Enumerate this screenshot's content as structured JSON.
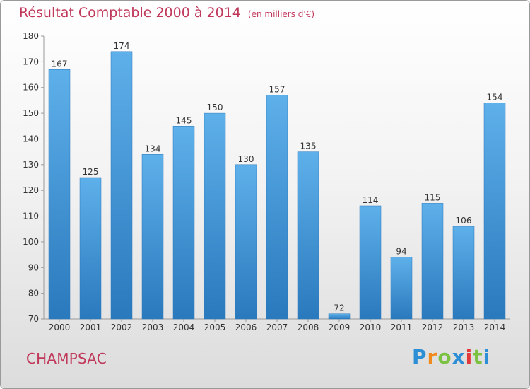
{
  "header": {
    "title": "Résultat Comptable 2000 à 2014",
    "subtitle": "(en milliers d'€)"
  },
  "footer": {
    "commune": "CHAMPSAC",
    "logo": "Proxiti"
  },
  "colors": {
    "bar": "#3a92d6",
    "bar_light": "#5eb0ea",
    "bar_dark": "#2a79bd",
    "title": "#c0385a"
  },
  "chart_data": {
    "type": "bar",
    "title": "Résultat Comptable 2000 à 2014",
    "subtitle": "(en milliers d'€)",
    "categories": [
      "2000",
      "2001",
      "2002",
      "2003",
      "2004",
      "2005",
      "2006",
      "2007",
      "2008",
      "2009",
      "2010",
      "2011",
      "2012",
      "2013",
      "2014"
    ],
    "values": [
      167,
      125,
      174,
      134,
      145,
      150,
      130,
      157,
      135,
      72,
      114,
      94,
      115,
      106,
      154
    ],
    "ylim": [
      70,
      180
    ],
    "yticks": [
      70,
      80,
      90,
      100,
      110,
      120,
      130,
      140,
      150,
      160,
      170,
      180
    ],
    "grid": false,
    "data_labels": true
  }
}
